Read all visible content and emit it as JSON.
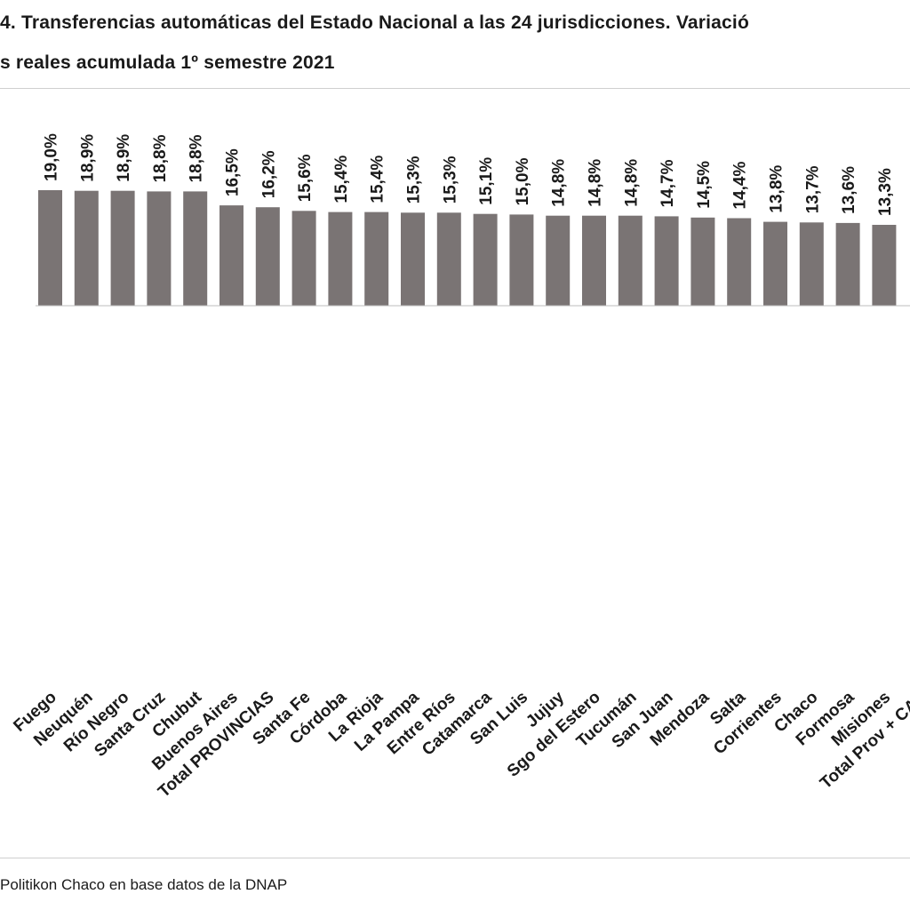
{
  "title": {
    "line1": "4. Transferencias automáticas del Estado Nacional a las 24 jurisdicciones. Variació",
    "line2": "s reales acumulada 1º semestre 2021"
  },
  "source": "Politikon Chaco en base datos de la DNAP",
  "colors": {
    "bar": "#7a7474",
    "text": "#1a1a1a",
    "baseline": "#bdbdbd"
  },
  "chart_data": {
    "type": "bar",
    "categories": [
      "Fuego",
      "Neuquén",
      "Río Negro",
      "Santa Cruz",
      "Chubut",
      "Buenos Aires",
      "Total PROVINCIAS",
      "Santa Fe",
      "Córdoba",
      "La Rioja",
      "La Pampa",
      "Entre Ríos",
      "Catamarca",
      "San Luis",
      "Jujuy",
      "Sgo del Estero",
      "Tucumán",
      "San Juan",
      "Mendoza",
      "Salta",
      "Corrientes",
      "Chaco",
      "Formosa",
      "Misiones",
      "Total Prov + CAP"
    ],
    "values": [
      19.0,
      18.9,
      18.9,
      18.8,
      18.8,
      16.5,
      16.2,
      15.6,
      15.4,
      15.4,
      15.3,
      15.3,
      15.1,
      15.0,
      14.8,
      14.8,
      14.8,
      14.7,
      14.5,
      14.4,
      13.8,
      13.7,
      13.6,
      13.3,
      null
    ],
    "data_labels": [
      "19,0%",
      "18,9%",
      "18,9%",
      "18,8%",
      "18,8%",
      "16,5%",
      "16,2%",
      "15,6%",
      "15,4%",
      "15,4%",
      "15,3%",
      "15,3%",
      "15,1%",
      "15,0%",
      "14,8%",
      "14,8%",
      "14,8%",
      "14,7%",
      "14,5%",
      "14,4%",
      "13,8%",
      "13,7%",
      "13,6%",
      "13,3%",
      ""
    ],
    "title": "",
    "xlabel": "",
    "ylabel": "",
    "ylim": [
      0,
      19.0
    ],
    "grid": false,
    "legend": "none"
  }
}
